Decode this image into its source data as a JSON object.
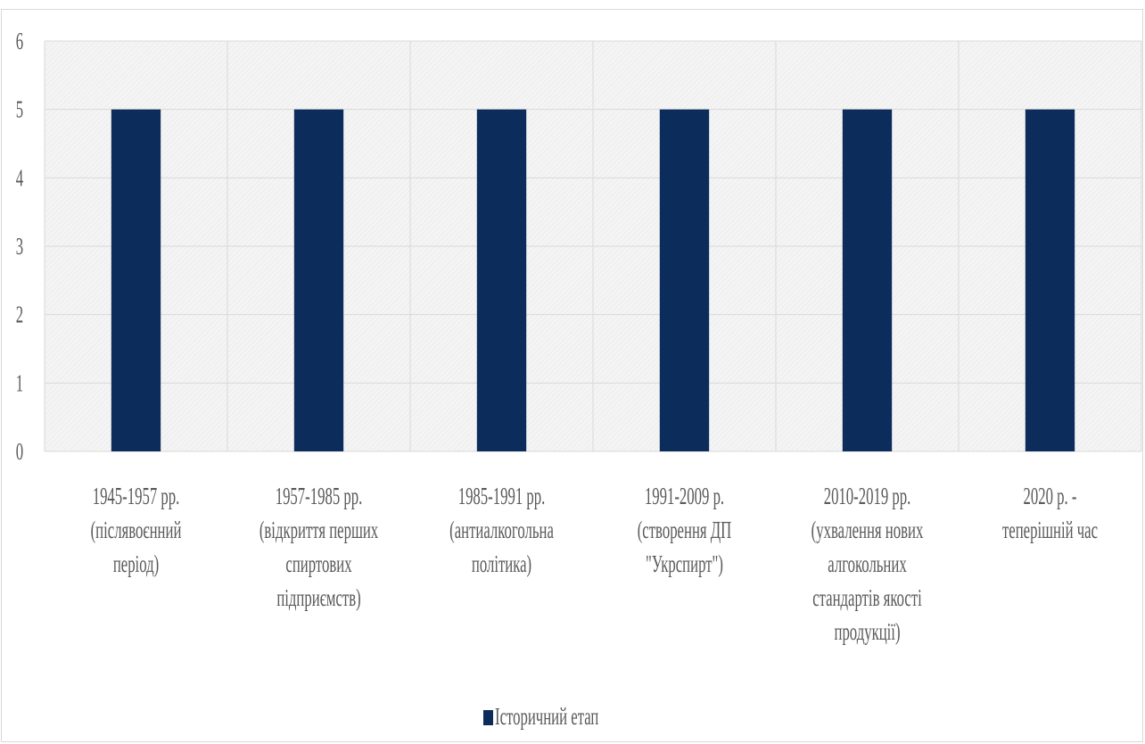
{
  "chart_data": {
    "type": "bar",
    "categories": [
      [
        "1945-1957 рр.",
        "(післявоєнний",
        "період)"
      ],
      [
        "1957-1985 рр.",
        "(відкриття перших",
        "спиртових",
        "підприємств)"
      ],
      [
        "1985-1991 рр.",
        "(антиалкогольна",
        "політика)"
      ],
      [
        "1991-2009 р.",
        "(створення ДП",
        "\"Укрспирт\")"
      ],
      [
        "2010-2019 рр.",
        "(ухвалення нових",
        "алгокольних",
        "стандартів якості",
        "продукції)"
      ],
      [
        "2020 р. -",
        "теперішній час"
      ]
    ],
    "series": [
      {
        "name": "Історичний етап",
        "values": [
          5,
          5,
          5,
          5,
          5,
          5
        ]
      }
    ],
    "ylim": [
      0,
      6
    ],
    "yticks": [
      "0",
      "1",
      "2",
      "3",
      "4",
      "5",
      "6"
    ],
    "grid": true,
    "legend_position": "bottom",
    "colors": {
      "bar": "#0c2c5c",
      "plot_bg": "#f2f2f2",
      "grid": "#d9d9d9",
      "text": "#595959"
    }
  }
}
